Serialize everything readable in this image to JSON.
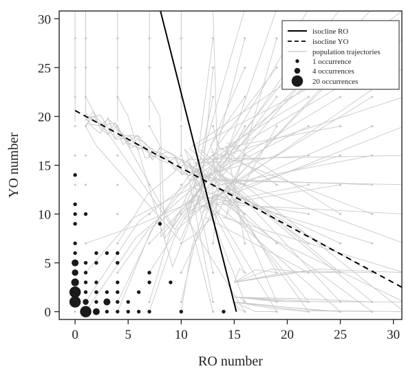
{
  "chart_data": {
    "type": "scatter",
    "xlabel": "RO number",
    "ylabel": "YO number",
    "xlim": [
      -1.5,
      30.8
    ],
    "ylim": [
      -0.8,
      30.8
    ],
    "x_ticks": [
      0,
      5,
      10,
      15,
      20,
      25,
      30
    ],
    "y_ticks": [
      0,
      5,
      10,
      15,
      20,
      25,
      30
    ],
    "isocline_ro": {
      "label": "isocline RO",
      "x": [
        8.0,
        15.2
      ],
      "y": [
        31.0,
        0.0
      ],
      "color": "#000000",
      "style": "solid"
    },
    "isocline_yo": {
      "label": "isocline YO",
      "x": [
        0.0,
        30.8
      ],
      "y": [
        20.6,
        2.5
      ],
      "color": "#000000",
      "style": "dashed"
    },
    "trajectories": {
      "label": "population trajectories",
      "color": "#c8c8c8",
      "grid_x": [
        0,
        1,
        4,
        7,
        10,
        13,
        16,
        19,
        22,
        25,
        28,
        31
      ],
      "grid_y": [
        0,
        1,
        4,
        7,
        10,
        13,
        16,
        19,
        22,
        25,
        28,
        31
      ],
      "equilibrium": [
        12.3,
        13.4
      ]
    },
    "occurrences": {
      "legend": [
        {
          "label": "1 occurrence",
          "count": 1
        },
        {
          "label": "4 occurrences",
          "count": 4
        },
        {
          "label": "20 occurrences",
          "count": 20
        }
      ],
      "color": "#1a1a1a",
      "points": [
        {
          "x": 0,
          "y": 14,
          "n": 1
        },
        {
          "x": 0,
          "y": 11,
          "n": 1
        },
        {
          "x": 0,
          "y": 10,
          "n": 1
        },
        {
          "x": 0,
          "y": 9,
          "n": 1
        },
        {
          "x": 1,
          "y": 10,
          "n": 1
        },
        {
          "x": 0,
          "y": 7,
          "n": 1
        },
        {
          "x": 0,
          "y": 6,
          "n": 1
        },
        {
          "x": 8,
          "y": 9,
          "n": 1
        },
        {
          "x": 0,
          "y": 5,
          "n": 6
        },
        {
          "x": 0,
          "y": 4,
          "n": 5
        },
        {
          "x": 0,
          "y": 3,
          "n": 8
        },
        {
          "x": 0,
          "y": 2,
          "n": 20
        },
        {
          "x": 0,
          "y": 1,
          "n": 20
        },
        {
          "x": 1,
          "y": 0,
          "n": 20
        },
        {
          "x": 1,
          "y": 1,
          "n": 4
        },
        {
          "x": 2,
          "y": 0,
          "n": 6
        },
        {
          "x": 3,
          "y": 1,
          "n": 6
        },
        {
          "x": 1,
          "y": 5,
          "n": 1
        },
        {
          "x": 1,
          "y": 4,
          "n": 1
        },
        {
          "x": 1,
          "y": 3,
          "n": 1
        },
        {
          "x": 1,
          "y": 2,
          "n": 1
        },
        {
          "x": 2,
          "y": 6,
          "n": 1
        },
        {
          "x": 2,
          "y": 5,
          "n": 1
        },
        {
          "x": 2,
          "y": 3,
          "n": 1
        },
        {
          "x": 2,
          "y": 2,
          "n": 1
        },
        {
          "x": 2,
          "y": 1,
          "n": 1
        },
        {
          "x": 3,
          "y": 6,
          "n": 1
        },
        {
          "x": 3,
          "y": 2,
          "n": 1
        },
        {
          "x": 3,
          "y": 0,
          "n": 1
        },
        {
          "x": 4,
          "y": 6,
          "n": 1
        },
        {
          "x": 4,
          "y": 5,
          "n": 1
        },
        {
          "x": 4,
          "y": 3,
          "n": 1
        },
        {
          "x": 4,
          "y": 2,
          "n": 1
        },
        {
          "x": 4,
          "y": 1,
          "n": 1
        },
        {
          "x": 4,
          "y": 0,
          "n": 1
        },
        {
          "x": 5,
          "y": 1,
          "n": 1
        },
        {
          "x": 5,
          "y": 0,
          "n": 1
        },
        {
          "x": 6,
          "y": 2,
          "n": 1
        },
        {
          "x": 6,
          "y": 0,
          "n": 1
        },
        {
          "x": 7,
          "y": 4,
          "n": 1
        },
        {
          "x": 7,
          "y": 3,
          "n": 1
        },
        {
          "x": 7,
          "y": 0,
          "n": 1
        },
        {
          "x": 9,
          "y": 3,
          "n": 1
        },
        {
          "x": 10,
          "y": 0,
          "n": 1
        },
        {
          "x": 14,
          "y": 0,
          "n": 1
        }
      ]
    }
  }
}
